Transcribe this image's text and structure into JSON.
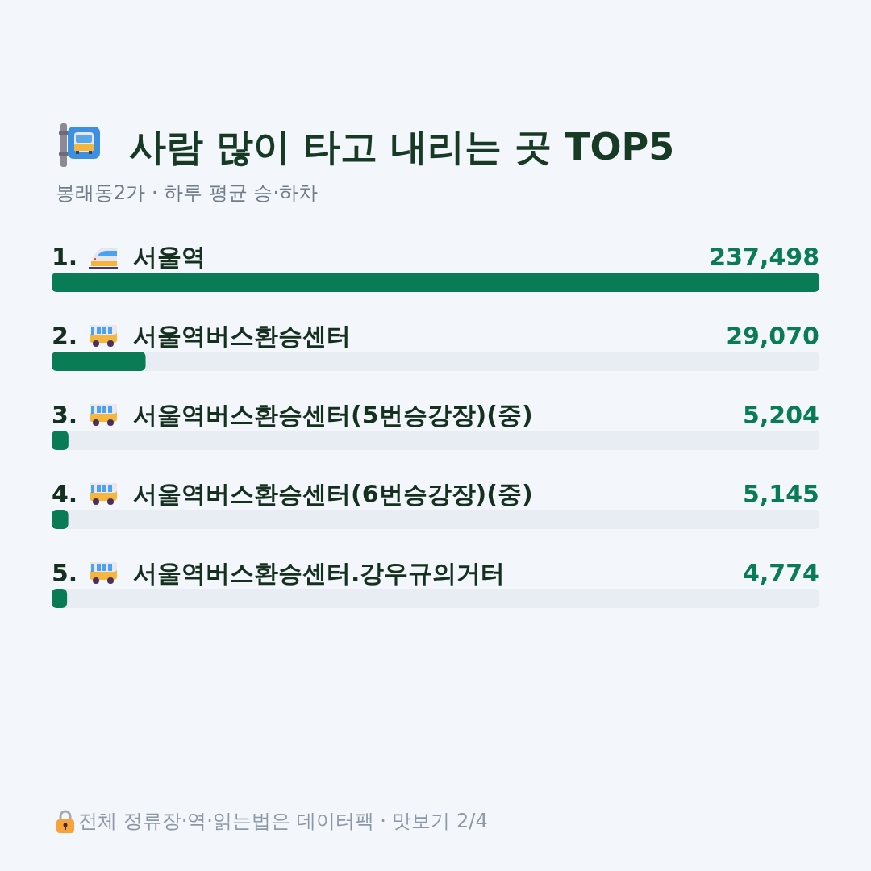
{
  "chart_data": {
    "type": "bar",
    "orientation": "horizontal",
    "title": "사람 많이 타고 내리는 곳 TOP5",
    "subtitle": "봉래동2가 · 하루 평균 승·하차",
    "categories": [
      "1. 서울역",
      "2. 서울역버스환승센터",
      "3. 서울역버스환승센터(5번승강장)(중)",
      "4. 서울역버스환승센터(6번승강장)(중)",
      "5. 서울역버스환승센터.강우규의거터"
    ],
    "values": [
      237498,
      29070,
      5204,
      5145,
      4774
    ],
    "value_labels": [
      "237,498",
      "29,070",
      "5,204",
      "5,145",
      "4,774"
    ],
    "color": "#0a7c55",
    "tick_labels": "y",
    "annotations": [
      "전체 정류장·역·읽는법은 데이터팩 · 맛보기 2/4"
    ]
  }
}
